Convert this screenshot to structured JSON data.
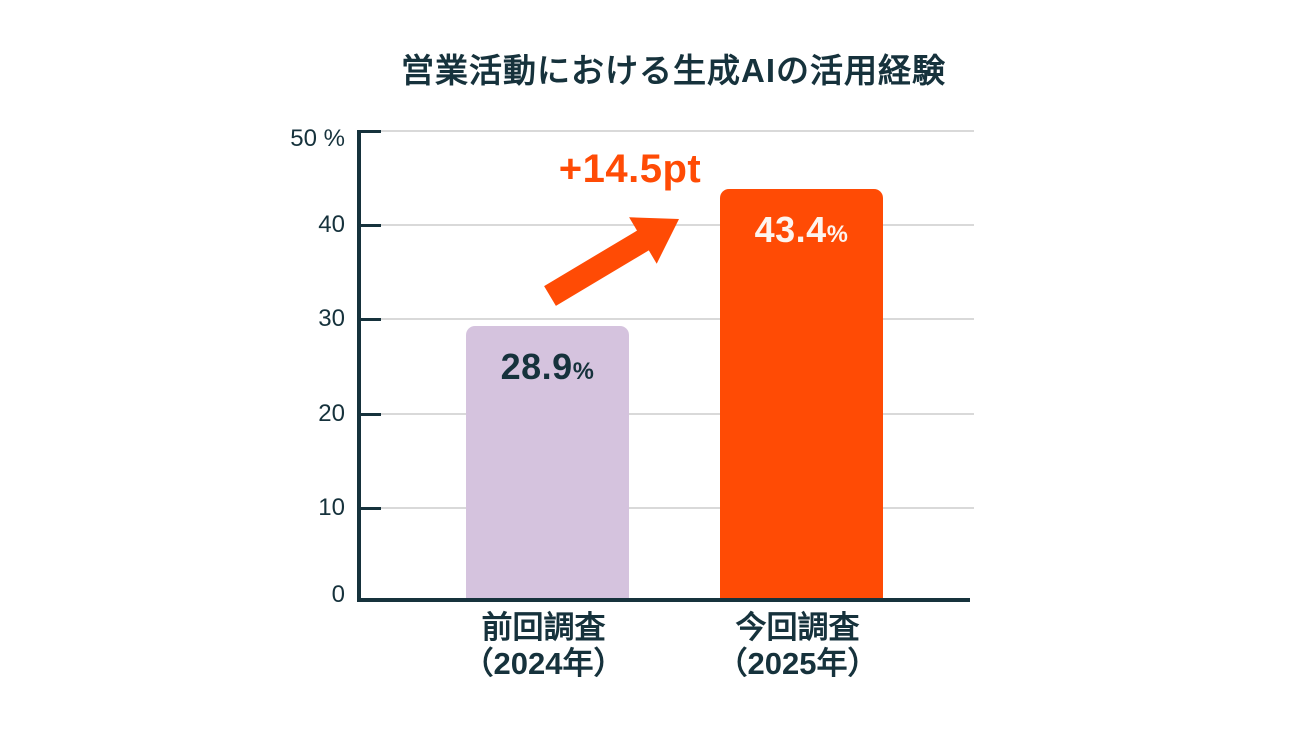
{
  "title": "営業活動における生成AIの活用経験",
  "chart_data": {
    "type": "bar",
    "title": "営業活動における生成AIの活用経験",
    "categories": [
      "前回調査（2024年）",
      "今回調査（2025年）"
    ],
    "category_lines": [
      [
        "前回調査",
        "（2024年）"
      ],
      [
        "今回調査",
        "（2025年）"
      ]
    ],
    "values": [
      28.9,
      43.4
    ],
    "bar_labels": [
      {
        "value": "28.9",
        "unit": "%"
      },
      {
        "value": "43.4",
        "unit": "%"
      }
    ],
    "bar_colors": [
      "#d5c3de",
      "#ff4b05"
    ],
    "bar_label_colors": [
      "#16323c",
      "#fdf4ee"
    ],
    "ylim": [
      0,
      50
    ],
    "yticks": [
      0,
      10,
      20,
      30,
      40,
      50
    ],
    "ytick_labels": [
      "0",
      "10",
      "20",
      "30",
      "40",
      "50 %"
    ],
    "grid": true,
    "legend": "none",
    "annotation": {
      "text": "+14.5pt",
      "color": "#ff4b05"
    }
  },
  "colors": {
    "accent_orange": "#ff4b05",
    "bar_lavender": "#d5c3de",
    "axis_dark": "#16323c",
    "gridline_gray": "#d9d9d9",
    "background": "#ffffff",
    "current_bar_label_text": "#fdf4ee"
  },
  "icons": {
    "increase_arrow": "diagonal-up-right-arrow"
  }
}
